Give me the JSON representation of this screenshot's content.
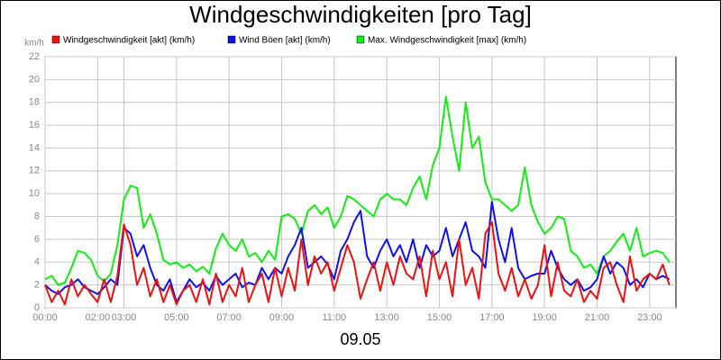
{
  "chart_data": {
    "type": "line",
    "title": "Windgeschwindigkeiten [pro Tag]",
    "y_label": "km/h",
    "x_label": "09.05",
    "x": [
      "00:00",
      "00:15",
      "00:30",
      "00:45",
      "01:00",
      "01:15",
      "01:30",
      "01:45",
      "02:00",
      "02:15",
      "02:30",
      "02:45",
      "03:00",
      "03:15",
      "03:30",
      "03:45",
      "04:00",
      "04:15",
      "04:30",
      "04:45",
      "05:00",
      "05:15",
      "05:30",
      "05:45",
      "06:00",
      "06:15",
      "06:30",
      "06:45",
      "07:00",
      "07:15",
      "07:30",
      "07:45",
      "08:00",
      "08:15",
      "08:30",
      "08:45",
      "09:00",
      "09:15",
      "09:30",
      "09:45",
      "10:00",
      "10:15",
      "10:30",
      "10:45",
      "11:00",
      "11:15",
      "11:30",
      "11:45",
      "12:00",
      "12:15",
      "12:30",
      "12:45",
      "13:00",
      "13:15",
      "13:30",
      "13:45",
      "14:00",
      "14:15",
      "14:30",
      "14:45",
      "15:00",
      "15:15",
      "15:30",
      "15:45",
      "16:00",
      "16:15",
      "16:30",
      "16:45",
      "17:00",
      "17:15",
      "17:30",
      "17:45",
      "18:00",
      "18:15",
      "18:30",
      "18:45",
      "19:00",
      "19:15",
      "19:30",
      "19:45",
      "20:00",
      "20:15",
      "20:30",
      "20:45",
      "21:00",
      "21:15",
      "21:30",
      "21:45",
      "22:00",
      "22:15",
      "22:30",
      "22:45",
      "23:00",
      "23:15",
      "23:30",
      "23:45"
    ],
    "series": [
      {
        "name": "Windgeschwindigkeit [akt] (km/h)",
        "color": "#ee1111",
        "values": [
          2.0,
          0.5,
          1.5,
          0.3,
          2.5,
          1.0,
          2.0,
          1.2,
          0.5,
          2.5,
          0.5,
          2.8,
          7.3,
          5.5,
          2.0,
          3.5,
          1.0,
          2.5,
          0.5,
          2.0,
          0.3,
          1.5,
          2.0,
          0.5,
          2.5,
          0.3,
          3.0,
          0.5,
          2.0,
          1.0,
          3.5,
          0.5,
          2.0,
          3.0,
          0.5,
          3.5,
          1.0,
          3.5,
          1.5,
          6.0,
          2.0,
          4.5,
          3.0,
          4.0,
          1.5,
          3.5,
          5.5,
          4.0,
          0.8,
          2.5,
          4.0,
          1.5,
          4.0,
          2.0,
          4.5,
          3.0,
          2.5,
          4.5,
          1.0,
          5.0,
          2.5,
          4.0,
          1.0,
          6.0,
          2.0,
          3.5,
          0.8,
          6.5,
          7.5,
          3.0,
          1.5,
          3.5,
          1.0,
          2.5,
          0.8,
          2.0,
          5.5,
          1.0,
          4.0,
          1.5,
          1.0,
          2.5,
          0.5,
          1.5,
          0.8,
          3.5,
          4.0,
          2.0,
          0.5,
          4.5,
          1.5,
          2.5,
          3.0,
          2.5,
          3.8,
          2.0
        ]
      },
      {
        "name": "Wind Böen [akt] (km/h)",
        "color": "#1111ee",
        "values": [
          2.0,
          1.5,
          1.2,
          1.8,
          2.0,
          2.5,
          1.8,
          1.5,
          1.2,
          1.8,
          2.5,
          2.0,
          7.0,
          6.5,
          4.5,
          5.5,
          3.5,
          2.0,
          1.5,
          2.5,
          0.5,
          1.5,
          2.5,
          1.8,
          2.2,
          1.5,
          2.8,
          2.0,
          2.5,
          3.0,
          1.8,
          2.2,
          2.0,
          3.5,
          2.5,
          3.5,
          3.0,
          4.5,
          5.5,
          7.0,
          3.5,
          4.0,
          4.5,
          3.8,
          2.5,
          5.0,
          6.0,
          7.5,
          8.5,
          4.5,
          3.5,
          5.0,
          6.0,
          4.5,
          5.5,
          4.0,
          6.0,
          3.5,
          5.5,
          4.5,
          5.0,
          7.0,
          4.5,
          6.0,
          7.5,
          5.0,
          4.5,
          3.5,
          9.3,
          6.0,
          4.0,
          7.0,
          3.5,
          2.5,
          2.8,
          3.0,
          3.0,
          5.0,
          3.5,
          2.5,
          2.0,
          2.5,
          1.5,
          1.8,
          2.5,
          4.5,
          3.0,
          4.0,
          3.5,
          2.0,
          2.5,
          1.8,
          3.0,
          2.5,
          2.8,
          2.5
        ]
      },
      {
        "name": "Max. Windgeschwindigkeit [max] (km/h)",
        "color": "#11ee11",
        "values": [
          2.5,
          2.8,
          2.0,
          2.2,
          3.5,
          5.0,
          4.8,
          4.2,
          2.8,
          2.3,
          3.0,
          5.5,
          9.5,
          10.7,
          10.5,
          7.0,
          8.2,
          6.5,
          4.2,
          3.8,
          4.0,
          3.5,
          3.8,
          3.2,
          3.6,
          3.0,
          5.2,
          6.5,
          5.5,
          5.0,
          6.0,
          4.5,
          4.8,
          4.0,
          5.0,
          4.2,
          8.0,
          8.2,
          7.8,
          6.5,
          8.5,
          9.0,
          8.2,
          8.8,
          7.0,
          8.0,
          9.8,
          9.5,
          9.0,
          8.5,
          8.0,
          9.5,
          10.0,
          9.5,
          9.5,
          9.0,
          10.5,
          11.5,
          9.5,
          12.5,
          14.0,
          18.5,
          15.0,
          12.0,
          18.0,
          14.0,
          15.0,
          11.0,
          9.5,
          9.5,
          9.0,
          8.5,
          9.0,
          12.3,
          9.0,
          7.5,
          6.5,
          7.0,
          8.0,
          7.8,
          5.0,
          4.5,
          3.5,
          3.8,
          3.0,
          4.5,
          5.0,
          5.8,
          6.5,
          5.0,
          7.0,
          4.5,
          4.8,
          5.0,
          4.8,
          4.0
        ]
      }
    ],
    "xlim": [
      "00:00",
      "24:00"
    ],
    "xticks": [
      "00:00",
      "02:00",
      "03:00",
      "05:00",
      "07:00",
      "09:00",
      "11:00",
      "13:00",
      "15:00",
      "17:00",
      "19:00",
      "21:00",
      "23:00"
    ],
    "ylim": [
      0,
      22
    ],
    "yticks": [
      0,
      2,
      4,
      6,
      8,
      10,
      12,
      14,
      16,
      18,
      20,
      22
    ],
    "grid": true
  }
}
